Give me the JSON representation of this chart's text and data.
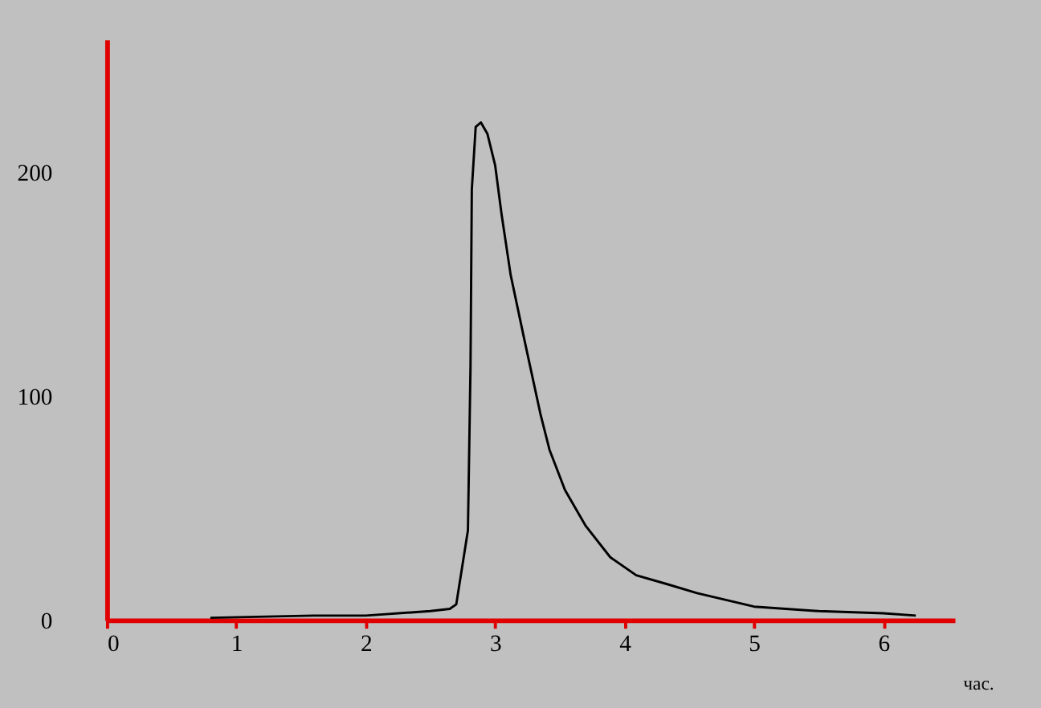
{
  "chart_data": {
    "type": "line",
    "xlabel": "час.",
    "series": [
      {
        "color": "#000000",
        "x": [
          0.8,
          1.6,
          2.0,
          2.5,
          2.65,
          2.7,
          2.79,
          2.81,
          2.82,
          2.85,
          2.89,
          2.94,
          3.0,
          3.05,
          3.12,
          3.23,
          3.35,
          3.42,
          3.54,
          3.7,
          3.89,
          4.09,
          4.33,
          4.56,
          5.0,
          5.5,
          6.0,
          6.25
        ],
        "values": [
          1,
          2,
          2,
          4,
          5,
          7,
          40,
          113,
          192,
          220,
          222,
          217,
          203,
          181,
          154,
          124,
          92,
          76,
          58,
          42,
          28,
          20,
          16,
          12,
          6,
          4,
          3,
          2
        ]
      }
    ],
    "xlim": [
      0,
      6.55
    ],
    "ylim": [
      0,
      259
    ],
    "xticks": [
      0,
      1,
      2,
      3,
      4,
      5,
      6
    ],
    "yticks": [
      0,
      100,
      200
    ],
    "grid": false,
    "marker": "none",
    "line_style": "solid"
  }
}
